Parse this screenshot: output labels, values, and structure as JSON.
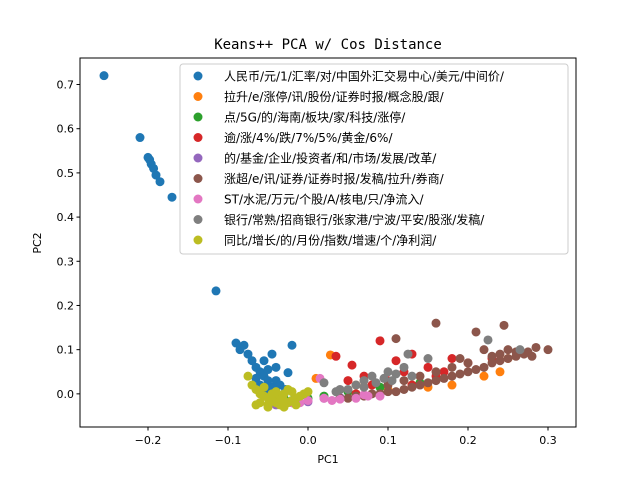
{
  "chart_data": {
    "type": "scatter",
    "title": "Keans++ PCA w/ Cos Distance",
    "xlabel": "PC1",
    "ylabel": "PC2",
    "xlim": [
      -0.285,
      0.335
    ],
    "ylim": [
      -0.075,
      0.76
    ],
    "x_ticks": [
      -0.2,
      -0.1,
      0.0,
      0.1,
      0.2,
      0.3
    ],
    "x_tick_labels": [
      "−0.2",
      "−0.1",
      "0.0",
      "0.1",
      "0.2",
      "0.3"
    ],
    "y_ticks": [
      0.0,
      0.1,
      0.2,
      0.3,
      0.4,
      0.5,
      0.6,
      0.7
    ],
    "y_tick_labels": [
      "0.0",
      "0.1",
      "0.2",
      "0.3",
      "0.4",
      "0.5",
      "0.6",
      "0.7"
    ],
    "grid": false,
    "legend_position": "top-right",
    "series": [
      {
        "name": "人民币/元/1/汇率/对/中国外汇交易中心/美元/中间价/",
        "color": "#1f77b4",
        "points": [
          [
            -0.255,
            0.72
          ],
          [
            -0.21,
            0.58
          ],
          [
            -0.2,
            0.535
          ],
          [
            -0.198,
            0.53
          ],
          [
            -0.196,
            0.52
          ],
          [
            -0.193,
            0.51
          ],
          [
            -0.19,
            0.495
          ],
          [
            -0.185,
            0.48
          ],
          [
            -0.17,
            0.445
          ],
          [
            -0.115,
            0.233
          ],
          [
            -0.09,
            0.115
          ],
          [
            -0.085,
            0.1
          ],
          [
            -0.08,
            0.11
          ],
          [
            -0.075,
            0.09
          ],
          [
            -0.07,
            0.075
          ],
          [
            -0.065,
            0.06
          ],
          [
            -0.06,
            0.05
          ],
          [
            -0.055,
            0.04
          ],
          [
            -0.05,
            0.055
          ],
          [
            -0.045,
            0.09
          ],
          [
            -0.04,
            0.03
          ],
          [
            -0.035,
            0.02
          ],
          [
            -0.028,
            0.01
          ],
          [
            -0.025,
            0.048
          ],
          [
            -0.02,
            0.11
          ],
          [
            -0.06,
            0.02
          ],
          [
            -0.05,
            0.005
          ],
          [
            -0.045,
            0.015
          ],
          [
            -0.04,
            0.06
          ],
          [
            -0.065,
            0.035
          ],
          [
            -0.055,
            0.075
          ],
          [
            -0.03,
            0.0
          ],
          [
            -0.05,
            0.03
          ]
        ]
      },
      {
        "name": "拉升/e/涨停/讯/股份/证券时报/概念股/跟/",
        "color": "#ff7f0e",
        "points": [
          [
            0.028,
            0.088
          ],
          [
            0.01,
            0.035
          ],
          [
            0.06,
            0.02
          ],
          [
            0.1,
            0.01
          ],
          [
            0.15,
            0.015
          ],
          [
            0.22,
            0.04
          ],
          [
            0.24,
            0.05
          ],
          [
            0.18,
            0.02
          ],
          [
            0.13,
            0.02
          ],
          [
            0.25,
            0.08
          ]
        ]
      },
      {
        "name": "点/5G/的/海南/板块/家/科技/涨停/",
        "color": "#2ca02c",
        "points": [
          [
            -0.03,
            -0.01
          ],
          [
            -0.02,
            -0.015
          ],
          [
            0.0,
            -0.01
          ],
          [
            0.02,
            -0.005
          ],
          [
            0.05,
            0.005
          ],
          [
            0.09,
            0.015
          ],
          [
            0.14,
            0.025
          ]
        ]
      },
      {
        "name": "逾/涨/4%/跌/7%/5%/黄金/6%/",
        "color": "#d62728",
        "points": [
          [
            0.035,
            0.085
          ],
          [
            0.09,
            0.12
          ],
          [
            0.13,
            0.09
          ],
          [
            0.11,
            0.075
          ],
          [
            0.07,
            0.04
          ],
          [
            0.05,
            0.03
          ],
          [
            0.15,
            0.06
          ],
          [
            0.2,
            0.07
          ],
          [
            0.17,
            0.05
          ],
          [
            0.08,
            0.02
          ],
          [
            0.12,
            0.05
          ],
          [
            0.06,
            0.0
          ],
          [
            0.1,
            0.03
          ],
          [
            0.13,
            0.02
          ],
          [
            0.16,
            0.04
          ],
          [
            0.23,
            0.08
          ],
          [
            0.18,
            0.08
          ],
          [
            0.055,
            0.065
          ]
        ]
      },
      {
        "name": "的/基金/企业/投资者/和/市场/发展/改革/",
        "color": "#9467bd",
        "points": [
          [
            -0.04,
            -0.025
          ],
          [
            -0.03,
            -0.02
          ],
          [
            -0.02,
            -0.02
          ],
          [
            0.0,
            -0.018
          ],
          [
            0.02,
            -0.01
          ],
          [
            0.04,
            -0.008
          ]
        ]
      },
      {
        "name": "涨超/e/讯/证券/证券时报/发稿/拉升/券商/",
        "color": "#8c564b",
        "points": [
          [
            0.11,
            0.125
          ],
          [
            0.16,
            0.16
          ],
          [
            0.21,
            0.14
          ],
          [
            0.245,
            0.155
          ],
          [
            0.3,
            0.1
          ],
          [
            0.285,
            0.105
          ],
          [
            0.27,
            0.09
          ],
          [
            0.26,
            0.085
          ],
          [
            0.25,
            0.08
          ],
          [
            0.24,
            0.075
          ],
          [
            0.23,
            0.07
          ],
          [
            0.22,
            0.06
          ],
          [
            0.21,
            0.055
          ],
          [
            0.2,
            0.05
          ],
          [
            0.19,
            0.045
          ],
          [
            0.18,
            0.04
          ],
          [
            0.17,
            0.035
          ],
          [
            0.16,
            0.03
          ],
          [
            0.15,
            0.025
          ],
          [
            0.14,
            0.02
          ],
          [
            0.13,
            0.015
          ],
          [
            0.12,
            0.01
          ],
          [
            0.11,
            0.005
          ],
          [
            0.1,
            0.005
          ],
          [
            0.09,
            0.0
          ],
          [
            0.08,
            0.0
          ],
          [
            0.07,
            -0.005
          ],
          [
            0.06,
            -0.005
          ],
          [
            0.05,
            -0.01
          ],
          [
            0.04,
            -0.01
          ],
          [
            0.22,
            0.1
          ],
          [
            0.24,
            0.09
          ],
          [
            0.26,
            0.095
          ],
          [
            0.28,
            0.085
          ],
          [
            0.2,
            0.07
          ],
          [
            0.18,
            0.06
          ],
          [
            0.16,
            0.05
          ],
          [
            0.14,
            0.04
          ],
          [
            0.12,
            0.03
          ],
          [
            0.1,
            0.02
          ],
          [
            0.19,
            0.08
          ],
          [
            0.23,
            0.085
          ],
          [
            0.25,
            0.1
          ],
          [
            0.275,
            0.095
          ]
        ]
      },
      {
        "name": "ST/水泥/万元/个股/A/核电/只/净流入/",
        "color": "#e377c2",
        "points": [
          [
            0.015,
            0.035
          ],
          [
            0.07,
            -0.002
          ],
          [
            0.075,
            -0.005
          ],
          [
            0.04,
            -0.012
          ],
          [
            0.02,
            -0.01
          ],
          [
            0.0,
            -0.015
          ],
          [
            -0.02,
            -0.02
          ],
          [
            -0.01,
            -0.02
          ],
          [
            0.03,
            -0.015
          ],
          [
            0.06,
            -0.01
          ],
          [
            0.09,
            -0.005
          ]
        ]
      },
      {
        "name": "银行/常熟/招商银行/张家港/宁波/平安/股涨/发稿/",
        "color": "#7f7f7f",
        "points": [
          [
            0.225,
            0.122
          ],
          [
            0.265,
            0.1
          ],
          [
            0.125,
            0.09
          ],
          [
            0.15,
            0.08
          ],
          [
            0.08,
            0.04
          ],
          [
            0.1,
            0.05
          ],
          [
            0.12,
            0.06
          ],
          [
            0.095,
            0.035
          ],
          [
            0.07,
            0.03
          ],
          [
            0.05,
            0.01
          ],
          [
            0.04,
            0.01
          ],
          [
            0.06,
            0.02
          ],
          [
            0.02,
            0.025
          ],
          [
            0.11,
            0.045
          ],
          [
            0.13,
            0.04
          ],
          [
            0.085,
            0.025
          ],
          [
            0.035,
            0.005
          ],
          [
            0.07,
            0.015
          ],
          [
            0.105,
            0.03
          ]
        ]
      },
      {
        "name": "同比/增长/的/月份/指数/增速/个/净利润/",
        "color": "#bcbd22",
        "points": [
          [
            -0.075,
            0.04
          ],
          [
            -0.07,
            0.02
          ],
          [
            -0.065,
            0.01
          ],
          [
            -0.06,
            0.0
          ],
          [
            -0.055,
            -0.005
          ],
          [
            -0.05,
            -0.01
          ],
          [
            -0.045,
            -0.015
          ],
          [
            -0.04,
            -0.02
          ],
          [
            -0.035,
            -0.025
          ],
          [
            -0.03,
            -0.03
          ],
          [
            -0.025,
            -0.02
          ],
          [
            -0.02,
            -0.015
          ],
          [
            -0.015,
            -0.01
          ],
          [
            -0.01,
            -0.005
          ],
          [
            -0.005,
            0.0
          ],
          [
            0.0,
            0.005
          ],
          [
            -0.06,
            -0.02
          ],
          [
            -0.05,
            -0.025
          ],
          [
            -0.04,
            -0.01
          ],
          [
            -0.03,
            0.0
          ],
          [
            -0.02,
            0.005
          ],
          [
            -0.045,
            0.0
          ],
          [
            -0.055,
            0.015
          ],
          [
            -0.035,
            -0.005
          ],
          [
            -0.025,
            0.01
          ],
          [
            -0.015,
            -0.025
          ],
          [
            -0.05,
            -0.03
          ],
          [
            -0.065,
            -0.025
          ],
          [
            -0.04,
            0.005
          ],
          [
            -0.03,
            -0.015
          ]
        ]
      }
    ]
  }
}
